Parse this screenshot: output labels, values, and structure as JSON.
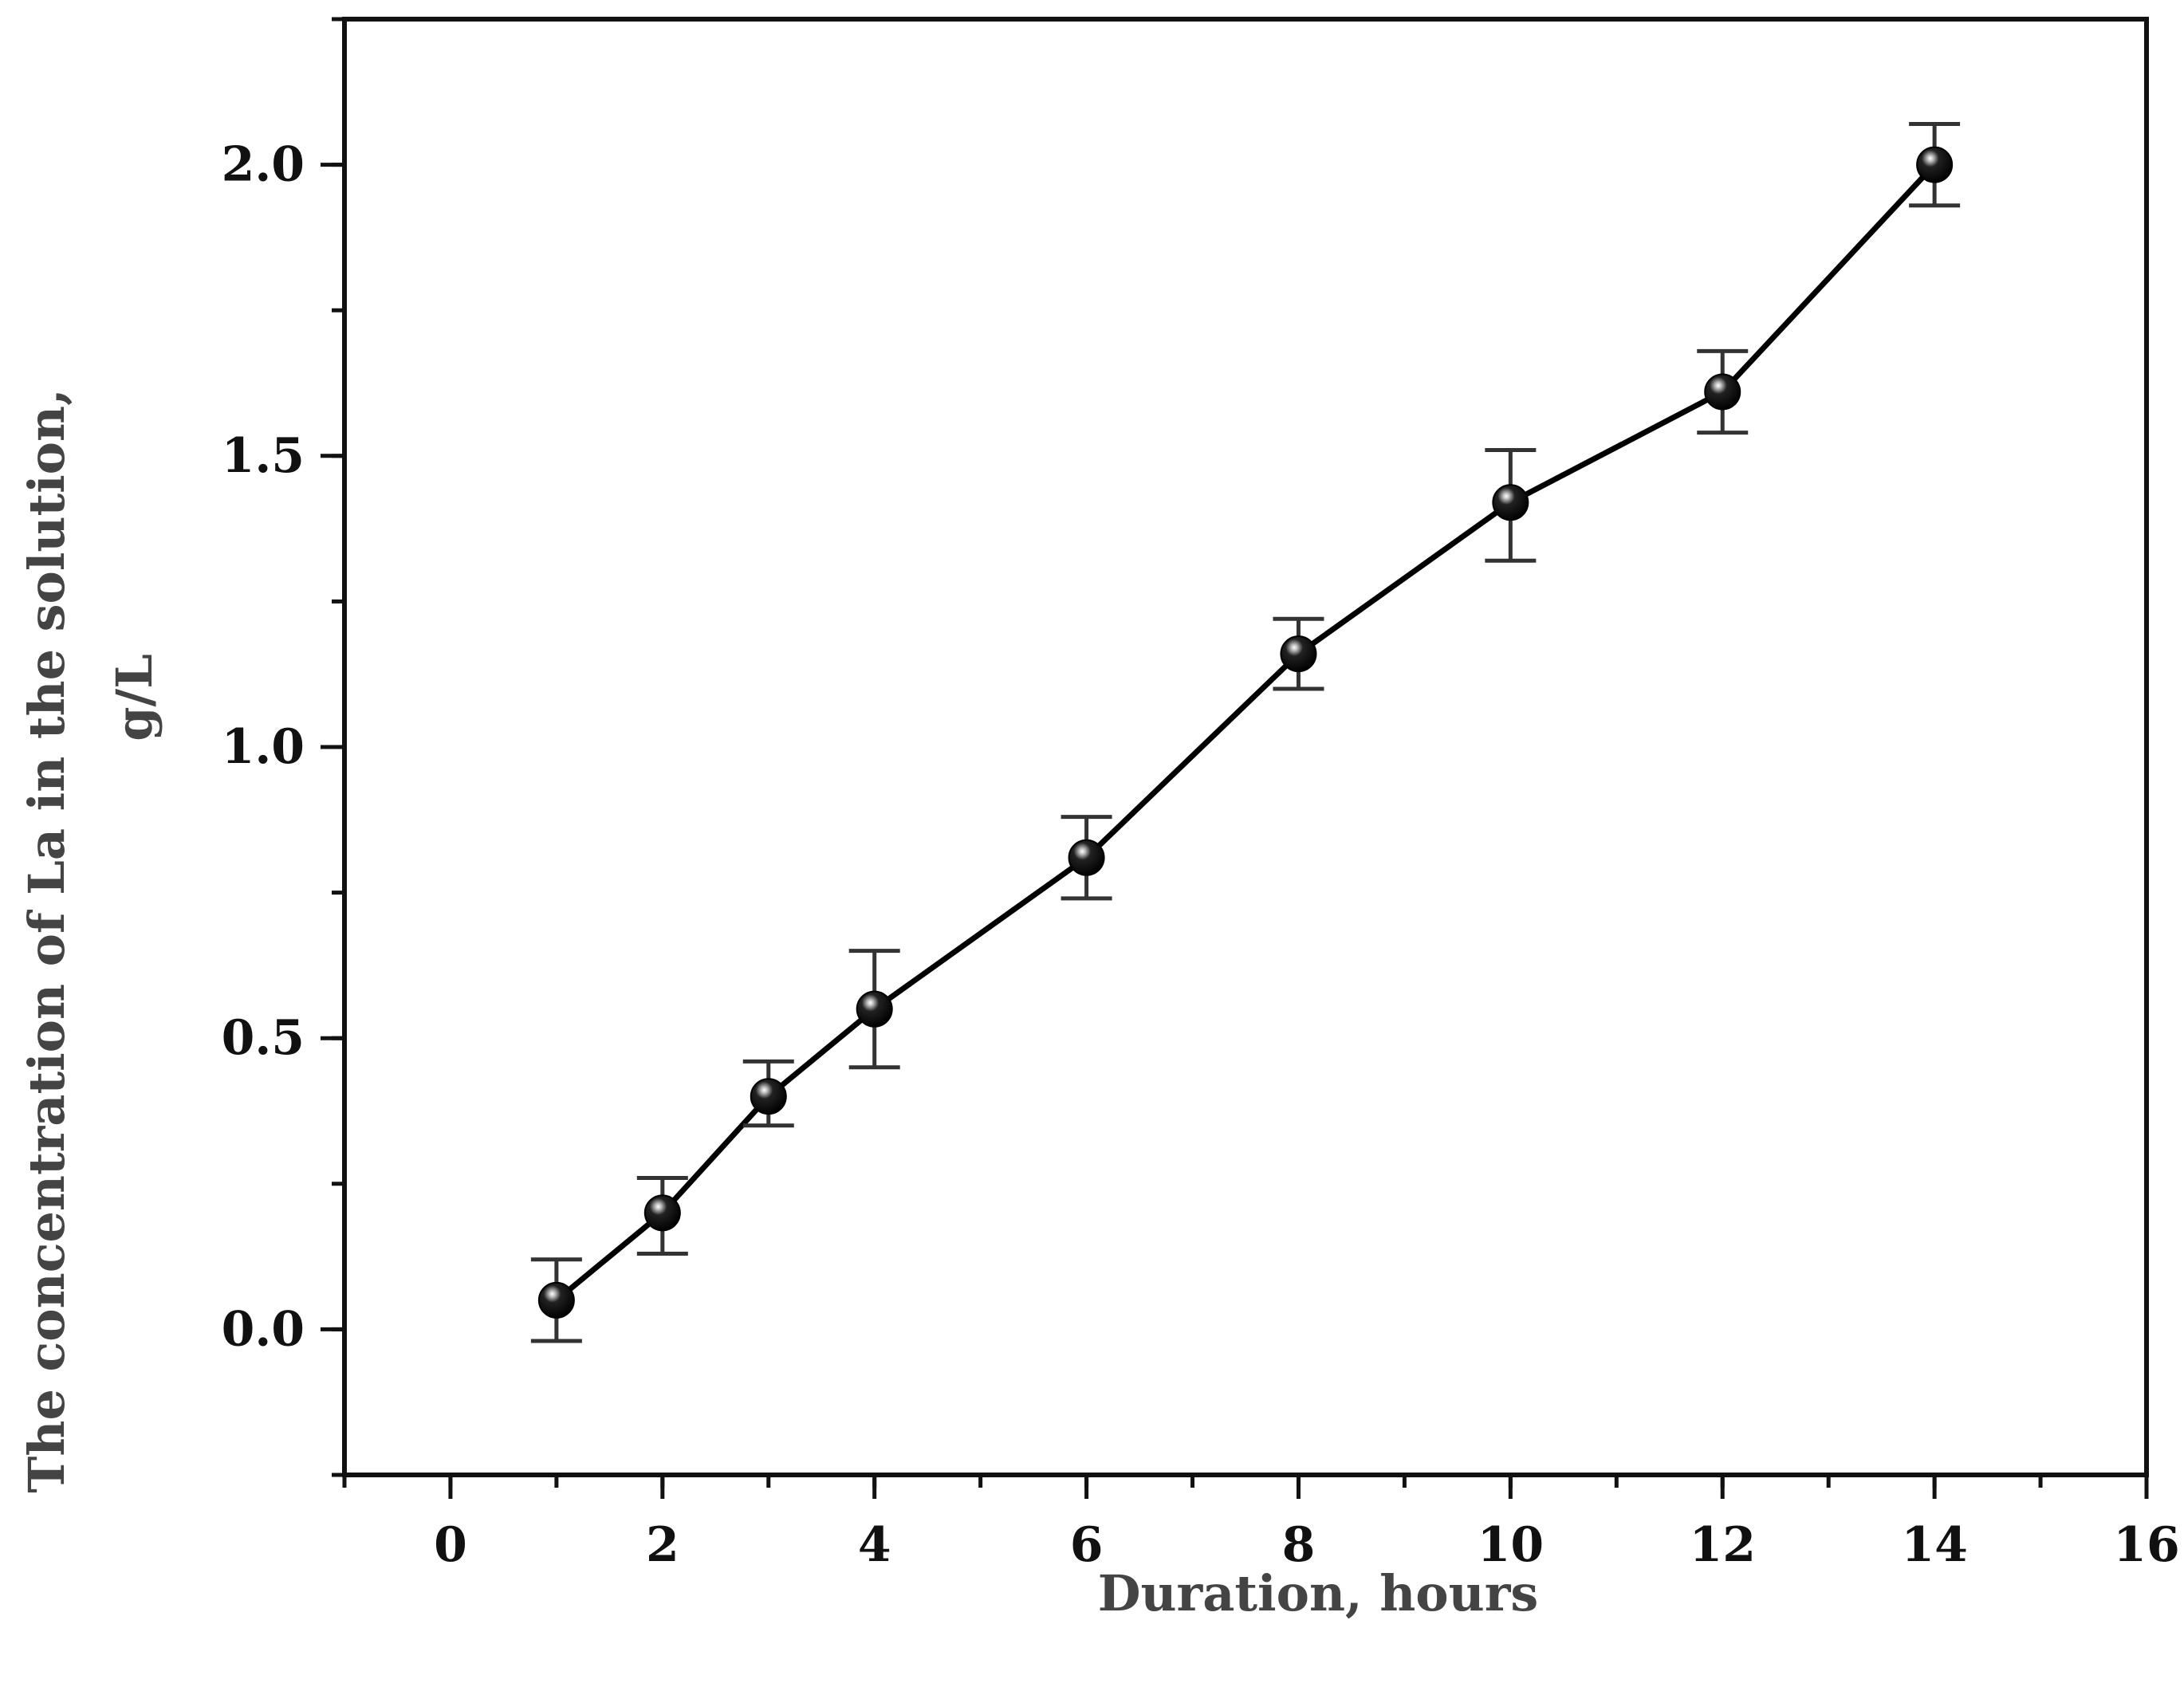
{
  "chart_data": {
    "type": "line",
    "title": "",
    "xlabel": "Duration, hours",
    "ylabel_lines": [
      "The concentration of La in the solution,",
      "g/L"
    ],
    "xlim": [
      -1,
      16
    ],
    "ylim": [
      -0.25,
      2.25
    ],
    "x_ticks": [
      0,
      2,
      4,
      6,
      8,
      10,
      12,
      14,
      16
    ],
    "x_tick_labels": [
      "0",
      "2",
      "4",
      "6",
      "8",
      "10",
      "12",
      "14",
      "16"
    ],
    "x_minor_step": 1,
    "y_ticks": [
      0.0,
      0.5,
      1.0,
      1.5,
      2.0
    ],
    "y_tick_labels": [
      "0.0",
      "0.5",
      "1.0",
      "1.5",
      "2.0"
    ],
    "y_minor_step": 0.25,
    "grid": false,
    "legend": "none",
    "series": [
      {
        "x": [
          1,
          2,
          3,
          4,
          6,
          8,
          10,
          12,
          14
        ],
        "y": [
          0.05,
          0.2,
          0.4,
          0.55,
          0.81,
          1.16,
          1.42,
          1.61,
          2.0
        ],
        "err_low": [
          0.07,
          0.07,
          0.05,
          0.1,
          0.07,
          0.06,
          0.1,
          0.07,
          0.07
        ],
        "err_high": [
          0.07,
          0.06,
          0.06,
          0.1,
          0.07,
          0.06,
          0.09,
          0.07,
          0.07
        ],
        "line_color": "#000000",
        "marker_color": "#000000",
        "errorbar_color": "#333333"
      }
    ]
  }
}
